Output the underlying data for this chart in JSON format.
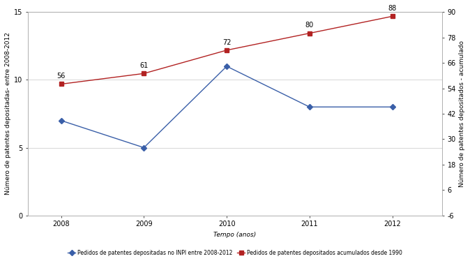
{
  "years": [
    2008,
    2009,
    2010,
    2011,
    2012
  ],
  "blue_values": [
    7,
    5,
    11,
    8,
    8
  ],
  "red_values": [
    56,
    61,
    72,
    80,
    88
  ],
  "blue_color": "#3a5fa8",
  "red_color": "#b22222",
  "blue_marker": "D",
  "red_marker": "s",
  "xlabel": "Tempo (anos)",
  "ylabel_left": "Número de patentes depositadas- entre 2008-2012",
  "ylabel_right": "Número de patentes depositados - acumulado",
  "ylim_left": [
    0,
    15
  ],
  "ylim_right": [
    -6,
    90
  ],
  "yticks_left": [
    0,
    5,
    10,
    15
  ],
  "yticks_right": [
    -6,
    6,
    18,
    30,
    42,
    54,
    66,
    78,
    90
  ],
  "legend_blue": "Pedidos de patentes depositadas no INPI entre 2008-2012",
  "legend_red": "Pedidos de patentes depositados acumulados desde 1990",
  "red_labels": [
    "56",
    "61",
    "72",
    "80",
    "88"
  ],
  "background_color": "#ffffff",
  "grid_color": "#c8c8c8",
  "axis_fontsize": 7,
  "label_fontsize": 6.5,
  "legend_fontsize": 5.5,
  "annot_fontsize": 7
}
